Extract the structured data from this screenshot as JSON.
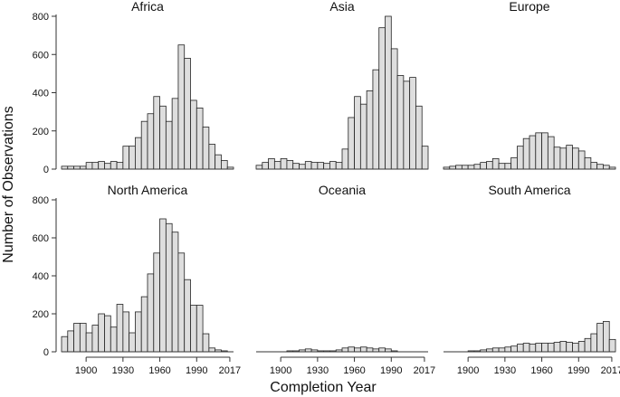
{
  "chart_data": {
    "type": "bar",
    "ylabel": "Number of Observations",
    "xlabel": "Completion Year",
    "ylim": [
      0,
      800
    ],
    "yticks": [
      0,
      200,
      400,
      600,
      800
    ],
    "xticks": [
      1900,
      1930,
      1960,
      1990,
      2017
    ],
    "bin_width_years": 5,
    "bin_starts": [
      1880,
      1885,
      1890,
      1895,
      1900,
      1905,
      1910,
      1915,
      1920,
      1925,
      1930,
      1935,
      1940,
      1945,
      1950,
      1955,
      1960,
      1965,
      1970,
      1975,
      1980,
      1985,
      1990,
      1995,
      2000,
      2005,
      2010,
      2015
    ],
    "panels": [
      {
        "name": "Africa",
        "values": [
          15,
          15,
          15,
          15,
          35,
          35,
          40,
          30,
          40,
          35,
          120,
          120,
          165,
          250,
          290,
          380,
          330,
          250,
          370,
          650,
          580,
          360,
          320,
          220,
          130,
          75,
          45,
          10
        ]
      },
      {
        "name": "Asia",
        "values": [
          20,
          35,
          55,
          40,
          55,
          45,
          30,
          25,
          40,
          35,
          35,
          30,
          40,
          35,
          105,
          270,
          380,
          340,
          410,
          520,
          740,
          800,
          630,
          490,
          460,
          480,
          330,
          120
        ]
      },
      {
        "name": "Europe",
        "values": [
          10,
          15,
          20,
          20,
          20,
          25,
          35,
          40,
          55,
          30,
          30,
          60,
          120,
          160,
          175,
          190,
          190,
          170,
          115,
          110,
          125,
          110,
          95,
          60,
          35,
          25,
          20,
          10
        ]
      },
      {
        "name": "North America",
        "values": [
          80,
          110,
          150,
          150,
          100,
          140,
          200,
          190,
          130,
          250,
          210,
          100,
          210,
          290,
          410,
          520,
          700,
          675,
          630,
          520,
          380,
          245,
          245,
          95,
          20,
          10,
          5,
          0
        ]
      },
      {
        "name": "Oceania",
        "values": [
          0,
          0,
          0,
          0,
          0,
          5,
          5,
          10,
          15,
          10,
          5,
          5,
          5,
          10,
          20,
          25,
          20,
          25,
          20,
          15,
          20,
          15,
          5,
          0,
          0,
          0,
          0,
          0
        ]
      },
      {
        "name": "South America",
        "values": [
          0,
          0,
          0,
          0,
          5,
          5,
          10,
          15,
          20,
          20,
          25,
          30,
          40,
          45,
          40,
          45,
          45,
          45,
          50,
          55,
          50,
          45,
          55,
          70,
          95,
          150,
          160,
          65
        ]
      }
    ]
  }
}
